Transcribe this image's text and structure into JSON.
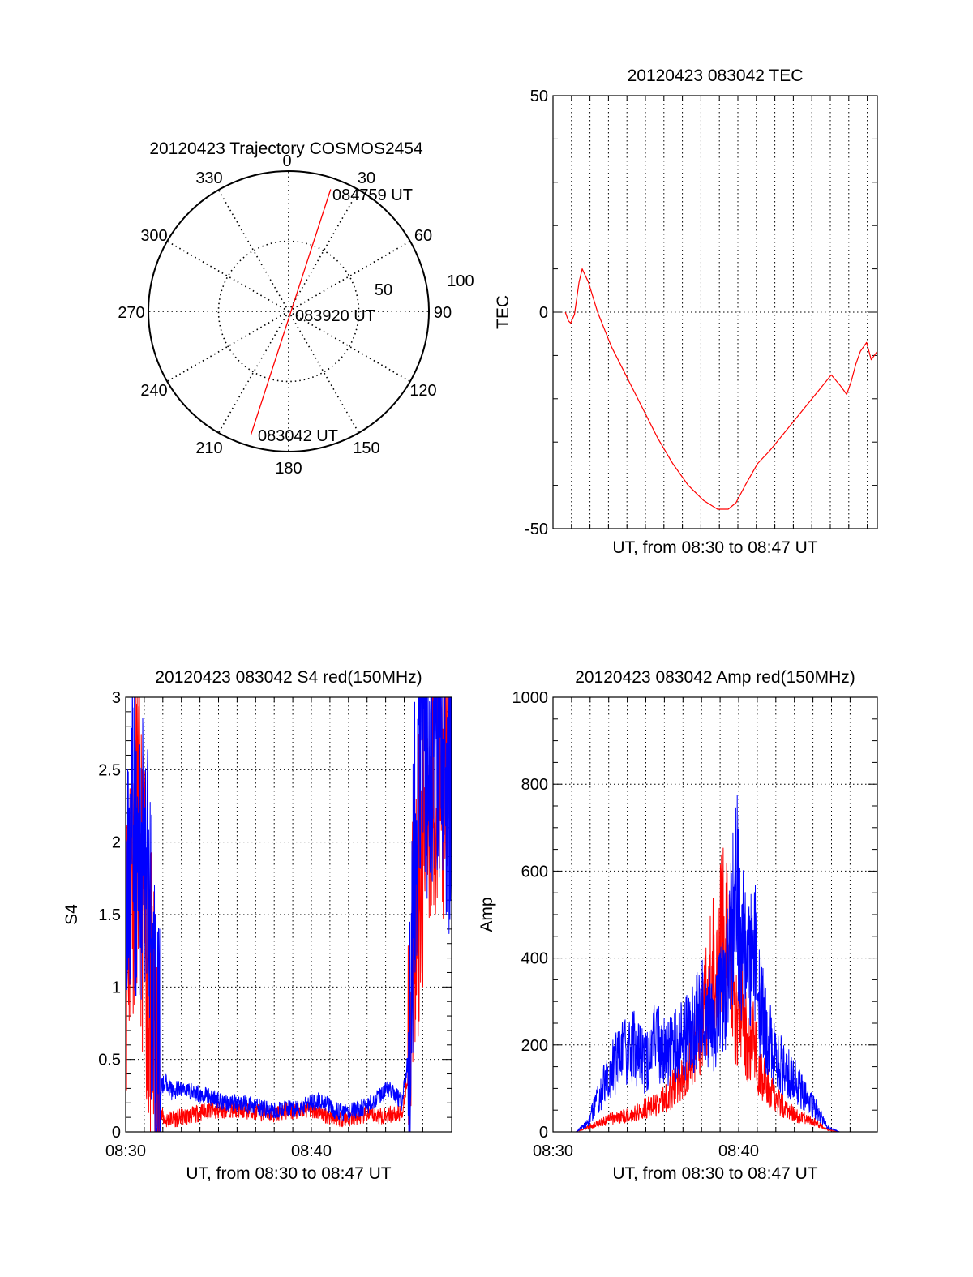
{
  "chart_data": [
    {
      "type": "polar",
      "title": "20120423 Trajectory COSMOS2454",
      "angle_labels": [
        "0",
        "30",
        "60",
        "90",
        "120",
        "150",
        "180",
        "210",
        "240",
        "270",
        "300",
        "330"
      ],
      "radial_labels": [
        "50",
        "100"
      ],
      "radial_range": [
        0,
        100
      ],
      "grid": true,
      "series": [
        {
          "color": "#ff0000",
          "points": [
            {
              "azimuth": 197,
              "radius": 92
            },
            {
              "azimuth": 19,
              "radius": 92
            }
          ]
        }
      ],
      "annotations": [
        {
          "text": "084759 UT",
          "azimuth": 25,
          "radius": 90
        },
        {
          "text": "083920 UT",
          "azimuth": 90,
          "radius": 7
        },
        {
          "text": "083042 UT",
          "azimuth": 180,
          "radius": 88
        }
      ]
    },
    {
      "type": "line",
      "title": "20120423 083042 TEC",
      "xlabel": "UT, from 08:30 to 08:47 UT",
      "ylabel": "TEC",
      "xlim": [
        8.5,
        8.793
      ],
      "ylim": [
        -50,
        50
      ],
      "yticks": [
        "50",
        "0",
        "-50"
      ],
      "grid": true,
      "series": [
        {
          "color": "#ff0000",
          "x": [
            8.5111,
            8.5139,
            8.516,
            8.5194,
            8.5236,
            8.5264,
            8.5319,
            8.5403,
            8.5528,
            8.5667,
            8.5806,
            8.5944,
            8.6083,
            8.6222,
            8.6361,
            8.6486,
            8.6583,
            8.6653,
            8.6736,
            8.6847,
            8.6958,
            8.7069,
            8.7181,
            8.7292,
            8.7403,
            8.7514,
            8.7597,
            8.7625,
            8.7653,
            8.7694,
            8.7736,
            8.7778,
            8.7833,
            8.7875,
            8.7931
          ],
          "y": [
            0,
            -2,
            -2.5,
            -0.5,
            7,
            10,
            7,
            0,
            -8,
            -15,
            -22,
            -29,
            -35,
            -40,
            -43.5,
            -45.5,
            -45.5,
            -44,
            -40,
            -35,
            -32,
            -28.5,
            -25,
            -21.5,
            -18,
            -14.5,
            -17,
            -18,
            -19,
            -16,
            -12,
            -9,
            -7,
            -11,
            -9
          ]
        }
      ]
    },
    {
      "type": "line",
      "title": "20120423 083042 S4 red(150MHz)",
      "xlabel": "UT, from 08:30 to 08:47 UT",
      "ylabel": "S4",
      "xticks": [
        "08:30",
        "08:40"
      ],
      "yticks": [
        "0",
        "0.5",
        "1",
        "1.5",
        "2",
        "2.5",
        "3"
      ],
      "xlim": [
        8.5,
        8.783
      ],
      "ylim": [
        0,
        3
      ],
      "grid": true,
      "series": [
        {
          "color": "#ff0000",
          "x": [
            8.5,
            8.505,
            8.51,
            8.515,
            8.52,
            8.525,
            8.527,
            8.53,
            8.535,
            8.54,
            8.55,
            8.56,
            8.57,
            8.58,
            8.59,
            8.6,
            8.61,
            8.62,
            8.63,
            8.64,
            8.65,
            8.66,
            8.67,
            8.68,
            8.69,
            8.7,
            8.71,
            8.72,
            8.73,
            8.74,
            8.745,
            8.75,
            8.755,
            8.76,
            8.765,
            8.77,
            8.775,
            8.78,
            8.783
          ],
          "y": [
            1.2,
            1.8,
            2.1,
            1.6,
            1.0,
            0.6,
            0.3,
            0.12,
            0.08,
            0.09,
            0.1,
            0.12,
            0.15,
            0.14,
            0.16,
            0.15,
            0.14,
            0.13,
            0.12,
            0.15,
            0.14,
            0.16,
            0.13,
            0.1,
            0.09,
            0.1,
            0.12,
            0.11,
            0.12,
            0.13,
            0.4,
            1.2,
            1.9,
            2.2,
            2.5,
            2.6,
            2.3,
            2.6,
            2.5
          ]
        },
        {
          "color": "#0000ff",
          "x": [
            8.5,
            8.505,
            8.51,
            8.515,
            8.52,
            8.525,
            8.527,
            8.53,
            8.535,
            8.54,
            8.55,
            8.56,
            8.57,
            8.58,
            8.59,
            8.6,
            8.61,
            8.62,
            8.63,
            8.64,
            8.65,
            8.66,
            8.67,
            8.68,
            8.69,
            8.7,
            8.71,
            8.72,
            8.73,
            8.74,
            8.745,
            8.75,
            8.755,
            8.76,
            8.765,
            8.77,
            8.775,
            8.78,
            8.783
          ],
          "y": [
            1.5,
            2.2,
            1.7,
            2.0,
            1.6,
            0.9,
            0.45,
            0.3,
            0.35,
            0.28,
            0.3,
            0.27,
            0.25,
            0.22,
            0.2,
            0.2,
            0.18,
            0.16,
            0.14,
            0.17,
            0.15,
            0.2,
            0.22,
            0.15,
            0.13,
            0.15,
            0.18,
            0.25,
            0.3,
            0.2,
            0.5,
            1.8,
            2.6,
            2.8,
            2.5,
            2.9,
            2.7,
            2.2,
            2.6
          ]
        }
      ]
    },
    {
      "type": "line",
      "title": "20120423 083042 Amp red(150MHz)",
      "xlabel": "UT, from 08:30 to 08:47 UT",
      "ylabel": "Amp",
      "xticks": [
        "08:30",
        "08:40"
      ],
      "yticks": [
        "0",
        "200",
        "400",
        "600",
        "800",
        "1000"
      ],
      "xlim": [
        8.5,
        8.783
      ],
      "ylim": [
        0,
        1000
      ],
      "grid": true,
      "series": [
        {
          "color": "#ff0000",
          "x": [
            8.5,
            8.51,
            8.52,
            8.53,
            8.54,
            8.55,
            8.56,
            8.57,
            8.58,
            8.59,
            8.6,
            8.61,
            8.62,
            8.63,
            8.64,
            8.65,
            8.655,
            8.66,
            8.665,
            8.67,
            8.675,
            8.68,
            8.69,
            8.7,
            8.71,
            8.72,
            8.73,
            8.74,
            8.75,
            8.76,
            8.77,
            8.783
          ],
          "y": [
            0,
            0,
            0,
            10,
            20,
            30,
            35,
            40,
            55,
            60,
            80,
            120,
            160,
            250,
            380,
            480,
            350,
            260,
            300,
            180,
            220,
            140,
            90,
            60,
            40,
            30,
            20,
            5,
            0,
            0,
            0,
            0
          ]
        },
        {
          "color": "#0000ff",
          "x": [
            8.5,
            8.51,
            8.52,
            8.53,
            8.54,
            8.55,
            8.56,
            8.57,
            8.58,
            8.59,
            8.6,
            8.61,
            8.62,
            8.63,
            8.64,
            8.65,
            8.655,
            8.66,
            8.665,
            8.67,
            8.675,
            8.68,
            8.69,
            8.7,
            8.71,
            8.72,
            8.73,
            8.74,
            8.75,
            8.76,
            8.77,
            8.783
          ],
          "y": [
            0,
            0,
            0,
            20,
            80,
            140,
            180,
            200,
            160,
            210,
            180,
            200,
            230,
            280,
            250,
            330,
            420,
            560,
            450,
            380,
            470,
            300,
            200,
            150,
            120,
            80,
            50,
            10,
            0,
            0,
            0,
            0
          ]
        }
      ]
    }
  ]
}
